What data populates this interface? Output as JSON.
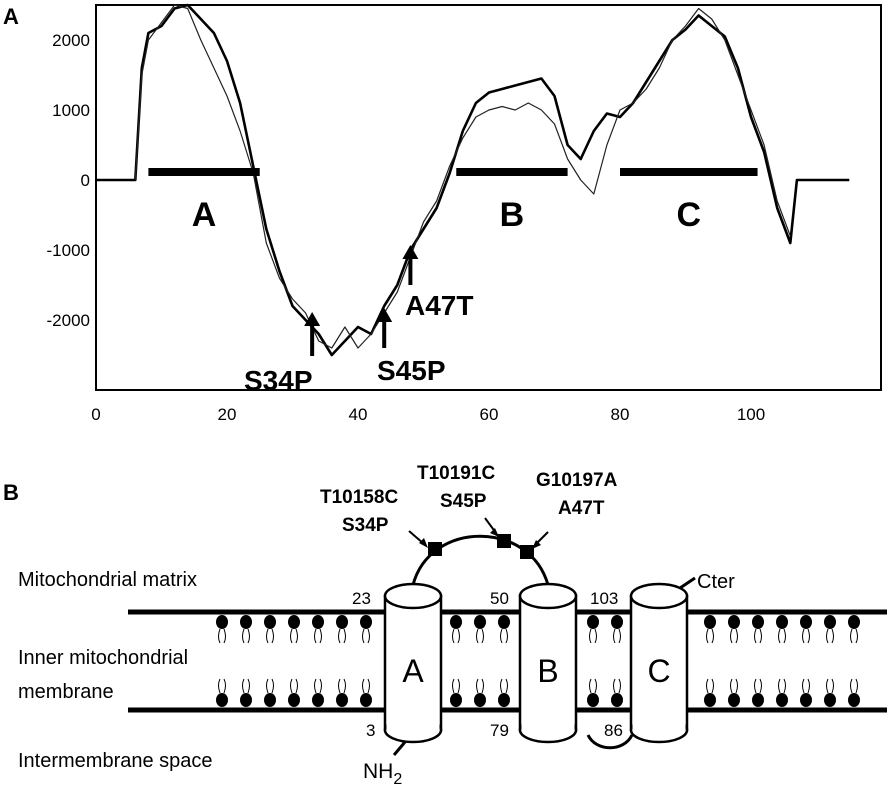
{
  "panel_a": {
    "label": "A",
    "regions": [
      {
        "name": "A",
        "x_start": 8,
        "x_end": 25
      },
      {
        "name": "B",
        "x_start": 55,
        "x_end": 72
      },
      {
        "name": "C",
        "x_start": 80,
        "x_end": 101
      }
    ],
    "mutations": [
      {
        "label": "S34P",
        "x": 33
      },
      {
        "label": "S45P",
        "x": 44
      },
      {
        "label": "A47T",
        "x": 48
      }
    ]
  },
  "panel_b": {
    "label": "B",
    "layers": {
      "matrix": "Mitochondrial matrix",
      "membrane_line1": "Inner mitochondrial",
      "membrane_line2": "membrane",
      "intermembrane": "Intermembrane space"
    },
    "helices": [
      "A",
      "B",
      "C"
    ],
    "residues": {
      "r23": "23",
      "r3": "3",
      "r50": "50",
      "r79": "79",
      "r103": "103",
      "r86": "86"
    },
    "terminals": {
      "n_term": "NH",
      "n_sub": "2",
      "c_term": "Cter"
    },
    "mutations": [
      {
        "nt": "T10158C",
        "aa": "S34P"
      },
      {
        "nt": "T10191C",
        "aa": "S45P"
      },
      {
        "nt": "G10197A",
        "aa": "A47T"
      }
    ]
  },
  "chart_data": {
    "type": "line",
    "xlim": [
      0,
      115
    ],
    "ylim": [
      -3000,
      2500
    ],
    "x_ticks": [
      "0",
      "20",
      "40",
      "60",
      "80",
      "100"
    ],
    "y_ticks": [
      "2000",
      "1000",
      "0",
      "-1000",
      "-2000"
    ],
    "series": [
      {
        "points": [
          [
            0,
            0
          ],
          [
            6,
            0
          ],
          [
            7,
            1600
          ],
          [
            8,
            2100
          ],
          [
            10,
            2200
          ],
          [
            12,
            2450
          ],
          [
            14,
            2500
          ],
          [
            16,
            2300
          ],
          [
            18,
            2100
          ],
          [
            20,
            1700
          ],
          [
            22,
            1100
          ],
          [
            24,
            200
          ],
          [
            26,
            -700
          ],
          [
            28,
            -1300
          ],
          [
            30,
            -1800
          ],
          [
            32,
            -2000
          ],
          [
            34,
            -2200
          ],
          [
            36,
            -2500
          ],
          [
            38,
            -2300
          ],
          [
            40,
            -2100
          ],
          [
            42,
            -2200
          ],
          [
            44,
            -1800
          ],
          [
            46,
            -1500
          ],
          [
            48,
            -1000
          ],
          [
            50,
            -700
          ],
          [
            52,
            -400
          ],
          [
            54,
            100
          ],
          [
            56,
            700
          ],
          [
            58,
            1100
          ],
          [
            60,
            1250
          ],
          [
            62,
            1300
          ],
          [
            64,
            1350
          ],
          [
            66,
            1400
          ],
          [
            68,
            1450
          ],
          [
            70,
            1200
          ],
          [
            72,
            500
          ],
          [
            74,
            300
          ],
          [
            76,
            700
          ],
          [
            78,
            950
          ],
          [
            80,
            900
          ],
          [
            82,
            1100
          ],
          [
            84,
            1400
          ],
          [
            86,
            1700
          ],
          [
            88,
            2000
          ],
          [
            90,
            2150
          ],
          [
            92,
            2350
          ],
          [
            94,
            2200
          ],
          [
            96,
            2050
          ],
          [
            98,
            1600
          ],
          [
            100,
            900
          ],
          [
            102,
            400
          ],
          [
            104,
            -400
          ],
          [
            106,
            -900
          ],
          [
            107,
            0
          ],
          [
            115,
            0
          ]
        ]
      },
      {
        "points": [
          [
            6,
            0
          ],
          [
            7,
            1500
          ],
          [
            8,
            2000
          ],
          [
            10,
            2250
          ],
          [
            12,
            2500
          ],
          [
            14,
            2450
          ],
          [
            16,
            2000
          ],
          [
            18,
            1600
          ],
          [
            20,
            1200
          ],
          [
            22,
            700
          ],
          [
            24,
            100
          ],
          [
            26,
            -900
          ],
          [
            28,
            -1400
          ],
          [
            30,
            -1700
          ],
          [
            32,
            -1900
          ],
          [
            34,
            -2300
          ],
          [
            36,
            -2400
          ],
          [
            38,
            -2100
          ],
          [
            40,
            -2400
          ],
          [
            42,
            -2200
          ],
          [
            44,
            -1900
          ],
          [
            46,
            -1600
          ],
          [
            48,
            -1100
          ],
          [
            50,
            -600
          ],
          [
            52,
            -300
          ],
          [
            54,
            200
          ],
          [
            56,
            600
          ],
          [
            58,
            900
          ],
          [
            60,
            1000
          ],
          [
            62,
            1050
          ],
          [
            64,
            1000
          ],
          [
            66,
            1100
          ],
          [
            68,
            1000
          ],
          [
            70,
            800
          ],
          [
            72,
            300
          ],
          [
            74,
            0
          ],
          [
            76,
            -200
          ],
          [
            78,
            500
          ],
          [
            80,
            1000
          ],
          [
            82,
            1100
          ],
          [
            84,
            1300
          ],
          [
            86,
            1600
          ],
          [
            88,
            2000
          ],
          [
            90,
            2200
          ],
          [
            92,
            2450
          ],
          [
            94,
            2300
          ],
          [
            96,
            2000
          ],
          [
            98,
            1500
          ],
          [
            100,
            1000
          ],
          [
            102,
            500
          ],
          [
            104,
            -300
          ],
          [
            106,
            -800
          ]
        ]
      }
    ]
  }
}
